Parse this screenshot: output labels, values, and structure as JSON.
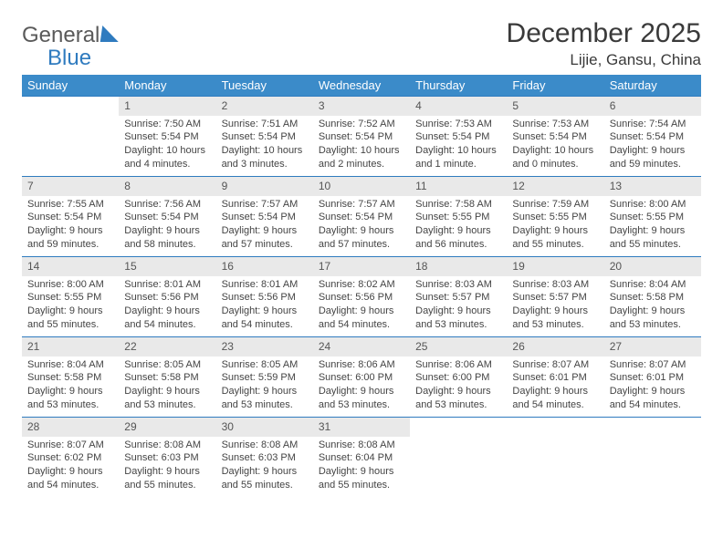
{
  "brand": {
    "name_gray": "General",
    "name_blue": "Blue"
  },
  "header": {
    "title": "December 2025",
    "location": "Lijie, Gansu, China"
  },
  "colors": {
    "header_bg": "#3b8bc9",
    "daynum_bg": "#e9e9e9",
    "rule": "#2f7bbf",
    "text": "#444444"
  },
  "weekdays": [
    "Sunday",
    "Monday",
    "Tuesday",
    "Wednesday",
    "Thursday",
    "Friday",
    "Saturday"
  ],
  "weeks": [
    [
      {
        "n": "",
        "sr": "",
        "ss": "",
        "dl": ""
      },
      {
        "n": "1",
        "sr": "Sunrise: 7:50 AM",
        "ss": "Sunset: 5:54 PM",
        "dl": "Daylight: 10 hours and 4 minutes."
      },
      {
        "n": "2",
        "sr": "Sunrise: 7:51 AM",
        "ss": "Sunset: 5:54 PM",
        "dl": "Daylight: 10 hours and 3 minutes."
      },
      {
        "n": "3",
        "sr": "Sunrise: 7:52 AM",
        "ss": "Sunset: 5:54 PM",
        "dl": "Daylight: 10 hours and 2 minutes."
      },
      {
        "n": "4",
        "sr": "Sunrise: 7:53 AM",
        "ss": "Sunset: 5:54 PM",
        "dl": "Daylight: 10 hours and 1 minute."
      },
      {
        "n": "5",
        "sr": "Sunrise: 7:53 AM",
        "ss": "Sunset: 5:54 PM",
        "dl": "Daylight: 10 hours and 0 minutes."
      },
      {
        "n": "6",
        "sr": "Sunrise: 7:54 AM",
        "ss": "Sunset: 5:54 PM",
        "dl": "Daylight: 9 hours and 59 minutes."
      }
    ],
    [
      {
        "n": "7",
        "sr": "Sunrise: 7:55 AM",
        "ss": "Sunset: 5:54 PM",
        "dl": "Daylight: 9 hours and 59 minutes."
      },
      {
        "n": "8",
        "sr": "Sunrise: 7:56 AM",
        "ss": "Sunset: 5:54 PM",
        "dl": "Daylight: 9 hours and 58 minutes."
      },
      {
        "n": "9",
        "sr": "Sunrise: 7:57 AM",
        "ss": "Sunset: 5:54 PM",
        "dl": "Daylight: 9 hours and 57 minutes."
      },
      {
        "n": "10",
        "sr": "Sunrise: 7:57 AM",
        "ss": "Sunset: 5:54 PM",
        "dl": "Daylight: 9 hours and 57 minutes."
      },
      {
        "n": "11",
        "sr": "Sunrise: 7:58 AM",
        "ss": "Sunset: 5:55 PM",
        "dl": "Daylight: 9 hours and 56 minutes."
      },
      {
        "n": "12",
        "sr": "Sunrise: 7:59 AM",
        "ss": "Sunset: 5:55 PM",
        "dl": "Daylight: 9 hours and 55 minutes."
      },
      {
        "n": "13",
        "sr": "Sunrise: 8:00 AM",
        "ss": "Sunset: 5:55 PM",
        "dl": "Daylight: 9 hours and 55 minutes."
      }
    ],
    [
      {
        "n": "14",
        "sr": "Sunrise: 8:00 AM",
        "ss": "Sunset: 5:55 PM",
        "dl": "Daylight: 9 hours and 55 minutes."
      },
      {
        "n": "15",
        "sr": "Sunrise: 8:01 AM",
        "ss": "Sunset: 5:56 PM",
        "dl": "Daylight: 9 hours and 54 minutes."
      },
      {
        "n": "16",
        "sr": "Sunrise: 8:01 AM",
        "ss": "Sunset: 5:56 PM",
        "dl": "Daylight: 9 hours and 54 minutes."
      },
      {
        "n": "17",
        "sr": "Sunrise: 8:02 AM",
        "ss": "Sunset: 5:56 PM",
        "dl": "Daylight: 9 hours and 54 minutes."
      },
      {
        "n": "18",
        "sr": "Sunrise: 8:03 AM",
        "ss": "Sunset: 5:57 PM",
        "dl": "Daylight: 9 hours and 53 minutes."
      },
      {
        "n": "19",
        "sr": "Sunrise: 8:03 AM",
        "ss": "Sunset: 5:57 PM",
        "dl": "Daylight: 9 hours and 53 minutes."
      },
      {
        "n": "20",
        "sr": "Sunrise: 8:04 AM",
        "ss": "Sunset: 5:58 PM",
        "dl": "Daylight: 9 hours and 53 minutes."
      }
    ],
    [
      {
        "n": "21",
        "sr": "Sunrise: 8:04 AM",
        "ss": "Sunset: 5:58 PM",
        "dl": "Daylight: 9 hours and 53 minutes."
      },
      {
        "n": "22",
        "sr": "Sunrise: 8:05 AM",
        "ss": "Sunset: 5:58 PM",
        "dl": "Daylight: 9 hours and 53 minutes."
      },
      {
        "n": "23",
        "sr": "Sunrise: 8:05 AM",
        "ss": "Sunset: 5:59 PM",
        "dl": "Daylight: 9 hours and 53 minutes."
      },
      {
        "n": "24",
        "sr": "Sunrise: 8:06 AM",
        "ss": "Sunset: 6:00 PM",
        "dl": "Daylight: 9 hours and 53 minutes."
      },
      {
        "n": "25",
        "sr": "Sunrise: 8:06 AM",
        "ss": "Sunset: 6:00 PM",
        "dl": "Daylight: 9 hours and 53 minutes."
      },
      {
        "n": "26",
        "sr": "Sunrise: 8:07 AM",
        "ss": "Sunset: 6:01 PM",
        "dl": "Daylight: 9 hours and 54 minutes."
      },
      {
        "n": "27",
        "sr": "Sunrise: 8:07 AM",
        "ss": "Sunset: 6:01 PM",
        "dl": "Daylight: 9 hours and 54 minutes."
      }
    ],
    [
      {
        "n": "28",
        "sr": "Sunrise: 8:07 AM",
        "ss": "Sunset: 6:02 PM",
        "dl": "Daylight: 9 hours and 54 minutes."
      },
      {
        "n": "29",
        "sr": "Sunrise: 8:08 AM",
        "ss": "Sunset: 6:03 PM",
        "dl": "Daylight: 9 hours and 55 minutes."
      },
      {
        "n": "30",
        "sr": "Sunrise: 8:08 AM",
        "ss": "Sunset: 6:03 PM",
        "dl": "Daylight: 9 hours and 55 minutes."
      },
      {
        "n": "31",
        "sr": "Sunrise: 8:08 AM",
        "ss": "Sunset: 6:04 PM",
        "dl": "Daylight: 9 hours and 55 minutes."
      },
      {
        "n": "",
        "sr": "",
        "ss": "",
        "dl": ""
      },
      {
        "n": "",
        "sr": "",
        "ss": "",
        "dl": ""
      },
      {
        "n": "",
        "sr": "",
        "ss": "",
        "dl": ""
      }
    ]
  ]
}
